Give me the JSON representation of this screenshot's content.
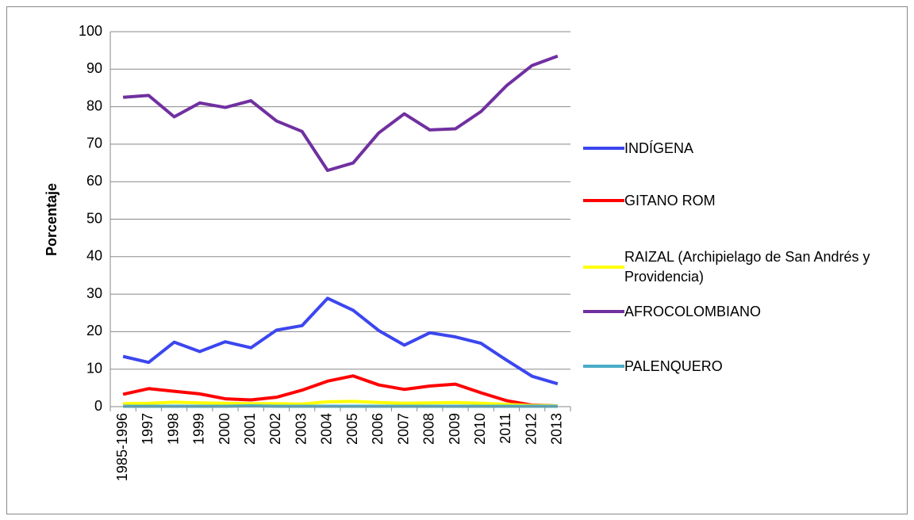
{
  "chart_data": {
    "type": "line",
    "y_label": "Porcentaje",
    "categories": [
      "1985-1996",
      "1997",
      "1998",
      "1999",
      "2000",
      "2001",
      "2002",
      "2003",
      "2004",
      "2005",
      "2006",
      "2007",
      "2008",
      "2009",
      "2010",
      "2011",
      "2012",
      "2013"
    ],
    "series": [
      {
        "name": "INDÍGENA",
        "color": "#3c46ef",
        "values": [
          13.4,
          11.8,
          17.2,
          14.7,
          17.3,
          15.7,
          20.4,
          21.6,
          28.9,
          25.7,
          20.3,
          16.4,
          19.7,
          18.6,
          16.9,
          12.4,
          8.1,
          6.1
        ]
      },
      {
        "name": "GITANO ROM",
        "color": "#ff0000",
        "values": [
          3.3,
          4.8,
          4.1,
          3.4,
          2.1,
          1.8,
          2.5,
          4.4,
          6.8,
          8.2,
          5.8,
          4.6,
          5.5,
          6.0,
          3.7,
          1.6,
          0.4,
          0.2
        ]
      },
      {
        "name": "RAIZAL (Archipielago de San Andrés y Providencia)",
        "color": "#ffff00",
        "values": [
          0.8,
          0.9,
          1.2,
          1.0,
          0.9,
          0.8,
          0.8,
          0.7,
          1.3,
          1.4,
          1.1,
          0.9,
          1.0,
          1.1,
          0.9,
          0.6,
          0.3,
          0.2
        ]
      },
      {
        "name": "AFROCOLOMBIANO",
        "color": "#7030a0",
        "values": [
          82.5,
          83.0,
          77.3,
          81.0,
          79.8,
          81.6,
          76.2,
          73.4,
          63.0,
          65.0,
          73.0,
          78.1,
          73.8,
          74.1,
          78.7,
          85.6,
          91.0,
          93.5
        ]
      },
      {
        "name": "PALENQUERO",
        "color": "#4bacc6",
        "values": [
          0.1,
          0.1,
          0.1,
          0.1,
          0.1,
          0.2,
          0.1,
          0.1,
          0.1,
          0.1,
          0.1,
          0.1,
          0.1,
          0.1,
          0.1,
          0.1,
          0.1,
          0.1
        ]
      }
    ],
    "ylim": [
      0,
      100
    ],
    "yticks": [
      0,
      10,
      20,
      30,
      40,
      50,
      60,
      70,
      80,
      90,
      100
    ],
    "grid": true,
    "legend": "right"
  }
}
